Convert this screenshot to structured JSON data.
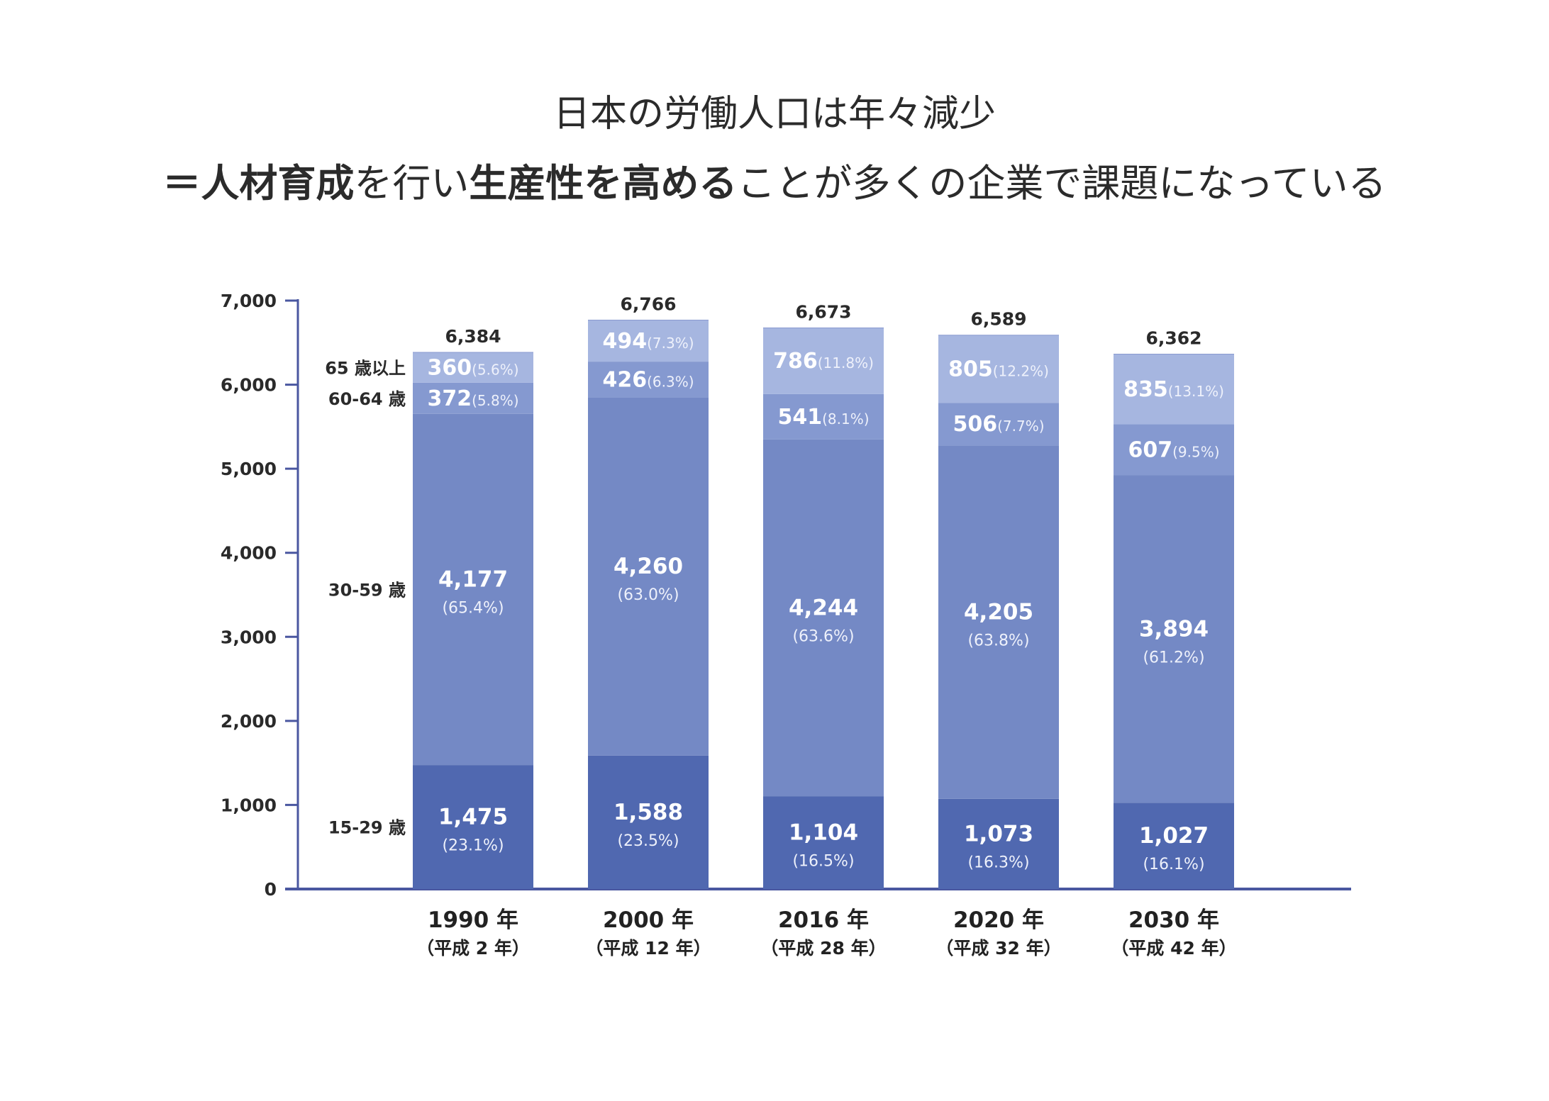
{
  "headline": {
    "line1": "日本の労働人口は年々減少",
    "line2_parts": [
      {
        "text": "＝人材育成",
        "bold": true
      },
      {
        "text": "を行い",
        "bold": false
      },
      {
        "text": "生産性を高める",
        "bold": true
      },
      {
        "text": "ことが多くの企業で課題になっている",
        "bold": false
      }
    ]
  },
  "colors": {
    "seg_15_29": "#5068b0",
    "seg_30_59": "#7489c5",
    "seg_60_64": "#8599d0",
    "seg_65": "#a6b6e0",
    "axis": "#4a57a0"
  },
  "chart_data": {
    "type": "bar",
    "stacked": true,
    "ylim": [
      0,
      7000
    ],
    "yticks": [
      {
        "value": 0,
        "label": "0"
      },
      {
        "value": 1000,
        "label": "1,000"
      },
      {
        "value": 2000,
        "label": "2,000"
      },
      {
        "value": 3000,
        "label": "3,000"
      },
      {
        "value": 4000,
        "label": "4,000"
      },
      {
        "value": 5000,
        "label": "5,000"
      },
      {
        "value": 6000,
        "label": "6,000"
      },
      {
        "value": 7000,
        "label": "7,000"
      }
    ],
    "categories": [
      {
        "year": "1990 年",
        "era": "（平成 2 年）",
        "total": 6384,
        "total_label": "6,384"
      },
      {
        "year": "2000 年",
        "era": "（平成 12 年）",
        "total": 6766,
        "total_label": "6,766"
      },
      {
        "year": "2016 年",
        "era": "（平成 28 年）",
        "total": 6673,
        "total_label": "6,673"
      },
      {
        "year": "2020 年",
        "era": "（平成 32 年）",
        "total": 6589,
        "total_label": "6,589"
      },
      {
        "year": "2030 年",
        "era": "（平成 42 年）",
        "total": 6362,
        "total_label": "6,362"
      }
    ],
    "series": [
      {
        "name": "15-29 歳",
        "color_key": "seg_15_29",
        "values": [
          1475,
          1588,
          1104,
          1073,
          1027
        ],
        "labels": [
          "1,475",
          "1,588",
          "1,104",
          "1,073",
          "1,027"
        ],
        "pcts": [
          "(23.1%)",
          "(23.5%)",
          "(16.5%)",
          "(16.3%)",
          "(16.1%)"
        ]
      },
      {
        "name": "30-59 歳",
        "color_key": "seg_30_59",
        "values": [
          4177,
          4260,
          4244,
          4205,
          3894
        ],
        "labels": [
          "4,177",
          "4,260",
          "4,244",
          "4,205",
          "3,894"
        ],
        "pcts": [
          "(65.4%)",
          "(63.0%)",
          "(63.6%)",
          "(63.8%)",
          "(61.2%)"
        ]
      },
      {
        "name": "60-64 歳",
        "color_key": "seg_60_64",
        "values": [
          372,
          426,
          541,
          506,
          607
        ],
        "labels": [
          "372",
          "426",
          "541",
          "506",
          "607"
        ],
        "pcts": [
          "(5.8%)",
          "(6.3%)",
          "(8.1%)",
          "(7.7%)",
          "(9.5%)"
        ]
      },
      {
        "name": "65 歳以上",
        "color_key": "seg_65",
        "values": [
          360,
          494,
          786,
          805,
          835
        ],
        "labels": [
          "360",
          "494",
          "786",
          "805",
          "835"
        ],
        "pcts": [
          "(5.6%)",
          "(7.3%)",
          "(11.8%)",
          "(12.2%)",
          "(13.1%)"
        ]
      }
    ]
  }
}
